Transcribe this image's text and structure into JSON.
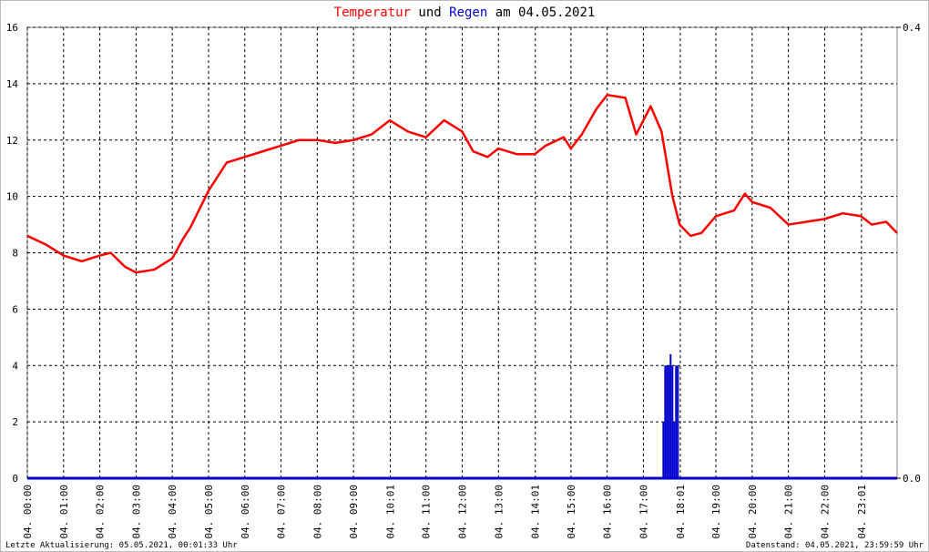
{
  "chart_data": {
    "type": "line",
    "title": [
      "Temperatur",
      "und",
      "Regen",
      "am 04.05.2021"
    ],
    "footer_left": "Letzte Aktualisierung: 05.05.2021, 00:01:33 Uhr",
    "footer_right": "Datenstand: 04.05.2021, 23:59:59 Uhr",
    "xlim": [
      0,
      24
    ],
    "xticks": [
      {
        "value": 0,
        "label": "04. 00:00"
      },
      {
        "value": 1,
        "label": "04. 01:00"
      },
      {
        "value": 2,
        "label": "04. 02:00"
      },
      {
        "value": 3,
        "label": "04. 03:00"
      },
      {
        "value": 4,
        "label": "04. 04:00"
      },
      {
        "value": 5,
        "label": "04. 05:00"
      },
      {
        "value": 6,
        "label": "04. 06:00"
      },
      {
        "value": 7,
        "label": "04. 07:00"
      },
      {
        "value": 8,
        "label": "04. 08:00"
      },
      {
        "value": 9,
        "label": "04. 09:00"
      },
      {
        "value": 10.0167,
        "label": "04. 10:01"
      },
      {
        "value": 11,
        "label": "04. 11:00"
      },
      {
        "value": 12,
        "label": "04. 12:00"
      },
      {
        "value": 13,
        "label": "04. 13:00"
      },
      {
        "value": 14.0167,
        "label": "04. 14:01"
      },
      {
        "value": 15,
        "label": "04. 15:00"
      },
      {
        "value": 16,
        "label": "04. 16:00"
      },
      {
        "value": 17,
        "label": "04. 17:00"
      },
      {
        "value": 18.0167,
        "label": "04. 18:01"
      },
      {
        "value": 19,
        "label": "04. 19:00"
      },
      {
        "value": 20,
        "label": "04. 20:00"
      },
      {
        "value": 21,
        "label": "04. 21:00"
      },
      {
        "value": 22,
        "label": "04. 22:00"
      },
      {
        "value": 23.0167,
        "label": "04. 23:01"
      }
    ],
    "ylim": [
      0,
      16
    ],
    "yticks": [
      0,
      2,
      4,
      6,
      8,
      10,
      12,
      14,
      16
    ],
    "y2lim": [
      0,
      0.4
    ],
    "y2ticks": [
      {
        "value": 0,
        "label": "0.0"
      },
      0.4
    ],
    "grid": true,
    "series": [
      {
        "name": "Temperatur",
        "color": "#ff0000",
        "x": [
          0,
          0.5,
          1,
          1.5,
          2,
          2.3,
          2.7,
          3,
          3.5,
          4,
          4.3,
          4.5,
          5,
          5.5,
          6,
          6.5,
          7,
          7.5,
          8,
          8.5,
          9,
          9.5,
          10,
          10.5,
          11,
          11.5,
          12,
          12.3,
          12.7,
          13,
          13.5,
          14,
          14.3,
          14.8,
          15,
          15.3,
          15.7,
          16,
          16.5,
          16.8,
          17,
          17.2,
          17.5,
          17.8,
          18,
          18.3,
          18.6,
          19,
          19.5,
          19.8,
          20,
          20.5,
          21,
          21.5,
          22,
          22.5,
          23,
          23.3,
          23.7,
          24
        ],
        "values": [
          8.6,
          8.3,
          7.9,
          7.7,
          7.9,
          8.0,
          7.5,
          7.3,
          7.4,
          7.8,
          8.5,
          8.9,
          10.2,
          11.2,
          11.4,
          11.6,
          11.8,
          12.0,
          12.0,
          11.9,
          12.0,
          12.2,
          12.7,
          12.3,
          12.1,
          12.7,
          12.3,
          11.6,
          11.4,
          11.7,
          11.5,
          11.5,
          11.8,
          12.1,
          11.7,
          12.2,
          13.1,
          13.6,
          13.5,
          12.2,
          12.7,
          13.2,
          12.3,
          10.0,
          9.0,
          8.6,
          8.7,
          9.3,
          9.5,
          10.1,
          9.8,
          9.6,
          9.0,
          9.1,
          9.2,
          9.4,
          9.3,
          9.0,
          9.1,
          8.7
        ]
      },
      {
        "name": "Regen",
        "color": "#0000cc",
        "axis": "y2",
        "x": [
          17.55,
          17.6,
          17.65,
          17.7,
          17.75,
          17.8,
          17.85,
          17.9,
          17.95
        ],
        "values": [
          0.05,
          0.1,
          0.1,
          0.1,
          0.11,
          0.1,
          0.05,
          0.1,
          0.1
        ]
      }
    ]
  }
}
